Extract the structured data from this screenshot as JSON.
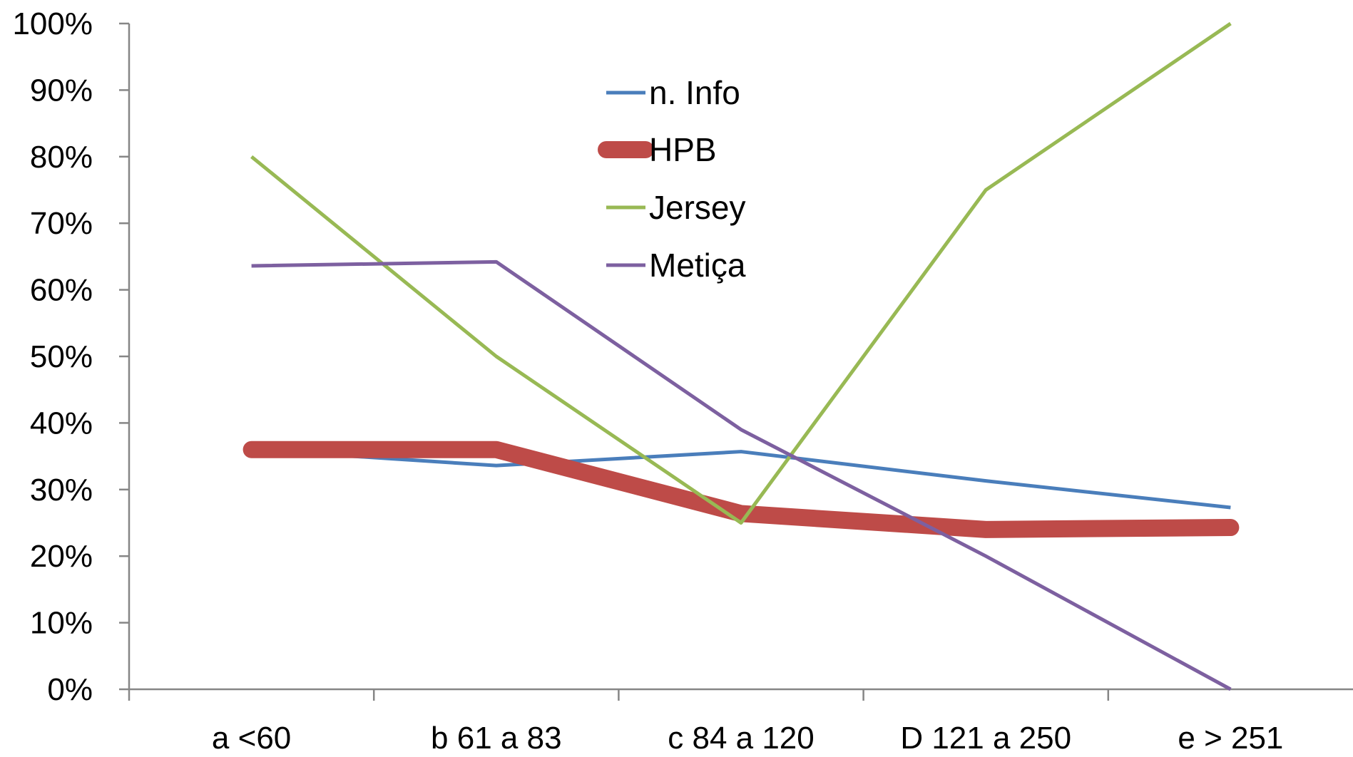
{
  "chart_data": {
    "type": "line",
    "categories": [
      "a <60",
      "b 61 a 83",
      "c 84 a 120",
      "D 121 a 250",
      "e > 251"
    ],
    "y_tick_labels": [
      "0%",
      "10%",
      "20%",
      "30%",
      "40%",
      "50%",
      "60%",
      "70%",
      "80%",
      "90%",
      "100%"
    ],
    "ylim": [
      0,
      100
    ],
    "grid": false,
    "legend_position": "top-center",
    "series": [
      {
        "name": "n. Info",
        "color": "#4A7EBB",
        "width": 5,
        "values": [
          36,
          33.6,
          35.7,
          31.3,
          27.3
        ]
      },
      {
        "name": "HPB",
        "color": "#BE4B48",
        "width": 24,
        "values": [
          36,
          36,
          26.4,
          24,
          24.3
        ]
      },
      {
        "name": "Jersey",
        "color": "#98B954",
        "width": 5,
        "values": [
          80,
          50,
          25,
          75,
          100
        ]
      },
      {
        "name": "Metiça",
        "color": "#7D60A0",
        "width": 5,
        "values": [
          63.6,
          64.2,
          39,
          20,
          0
        ]
      }
    ]
  }
}
